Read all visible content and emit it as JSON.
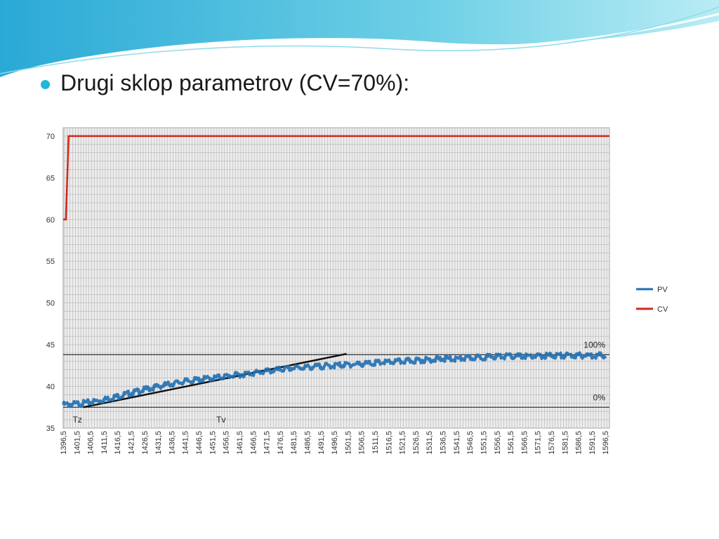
{
  "slide": {
    "title": "Drugi sklop parametrov (CV=70%):",
    "bullet_color": "#1fb8d8"
  },
  "chart_data": {
    "type": "line",
    "title": "",
    "xlabel": "",
    "ylabel": "",
    "ylim": [
      35,
      71
    ],
    "yticks": [
      35,
      40,
      45,
      50,
      55,
      60,
      65,
      70
    ],
    "x_range": [
      1396.5,
      1598
    ],
    "x_ticks": [
      "1396,5",
      "1401,5",
      "1406,5",
      "1411,5",
      "1416,5",
      "1421,5",
      "1426,5",
      "1431,5",
      "1436,5",
      "1441,5",
      "1446,5",
      "1451,5",
      "1456,5",
      "1461,5",
      "1466,5",
      "1471,5",
      "1476,5",
      "1481,5",
      "1486,5",
      "1491,5",
      "1496,5",
      "1501,5",
      "1506,5",
      "1511,5",
      "1516,5",
      "1521,5",
      "1526,5",
      "1531,5",
      "1536,5",
      "1541,5",
      "1546,5",
      "1551,5",
      "1556,5",
      "1561,5",
      "1566,5",
      "1571,5",
      "1576,5",
      "1581,5",
      "1586,5",
      "1591,5",
      "1596,5"
    ],
    "grid": true,
    "legend_position": "right",
    "series": [
      {
        "name": "PV",
        "color": "#1f6fb3",
        "x": [
          1396.5,
          1401.5,
          1406.5,
          1411.5,
          1416.5,
          1421.5,
          1426.5,
          1431.5,
          1436.5,
          1441.5,
          1446.5,
          1451.5,
          1456.5,
          1461.5,
          1466.5,
          1471.5,
          1476.5,
          1481.5,
          1486.5,
          1491.5,
          1496.5,
          1501.5,
          1506.5,
          1511.5,
          1516.5,
          1521.5,
          1526.5,
          1531.5,
          1536.5,
          1541.5,
          1546.5,
          1551.5,
          1556.5,
          1561.5,
          1566.5,
          1571.5,
          1576.5,
          1581.5,
          1586.5,
          1591.5,
          1596.5
        ],
        "values": [
          37.8,
          37.9,
          38.1,
          38.4,
          38.8,
          39.2,
          39.6,
          40.0,
          40.3,
          40.6,
          40.8,
          41.0,
          41.2,
          41.4,
          41.6,
          41.8,
          42.0,
          42.2,
          42.3,
          42.4,
          42.5,
          42.6,
          42.7,
          42.8,
          42.9,
          43.0,
          43.1,
          43.2,
          43.3,
          43.3,
          43.4,
          43.5,
          43.6,
          43.6,
          43.6,
          43.6,
          43.7,
          43.7,
          43.7,
          43.7,
          43.7
        ]
      },
      {
        "name": "CV",
        "color": "#d0271d",
        "x": [
          1396.5,
          1397.5,
          1398.5,
          1598
        ],
        "values": [
          60,
          60,
          70,
          70
        ]
      }
    ],
    "reference_lines": [
      {
        "label": "100%",
        "y": 43.8
      },
      {
        "label": "0%",
        "y": 37.5
      }
    ],
    "tangent_line": {
      "x": [
        1404,
        1501
      ],
      "y": [
        37.5,
        43.9
      ]
    },
    "annotations": [
      {
        "text": "Tz",
        "x": 1400
      },
      {
        "text": "Tv",
        "x": 1453
      }
    ]
  }
}
